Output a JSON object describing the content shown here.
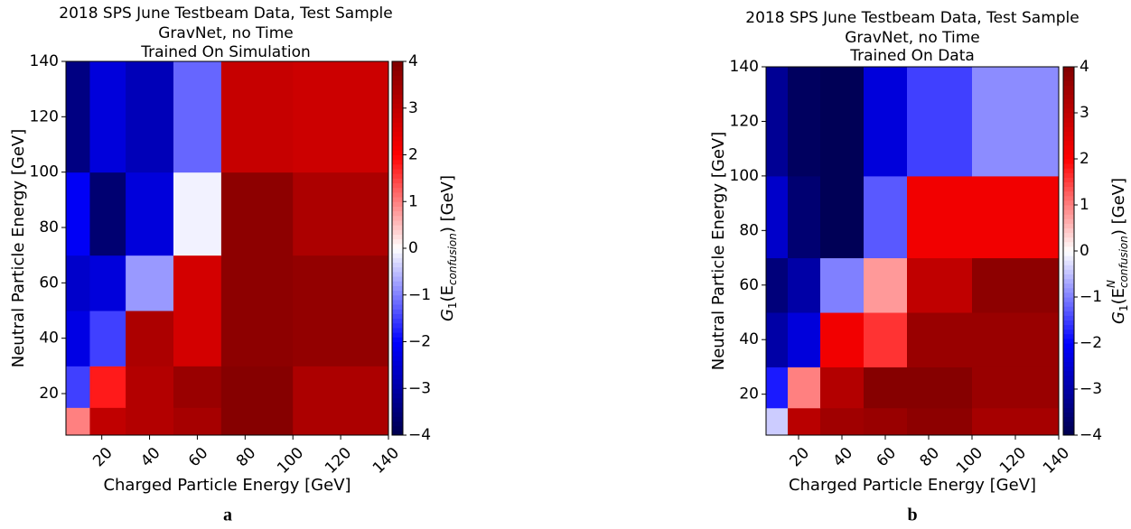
{
  "chart_data": [
    {
      "type": "heatmap",
      "title": [
        "2018 SPS June Testbeam Data, Test Sample",
        "GravNet, no Time",
        "Trained On Simulation"
      ],
      "x_label": "Charged Particle Energy [GeV]",
      "y_label": "Neutral Particle Energy [GeV]",
      "colorbar_label": [
        "G",
        "1",
        "(E",
        "confusion",
        ") [GeV]"
      ],
      "panel_label": "a",
      "x_edges": [
        5,
        15,
        30,
        50,
        70,
        100,
        140
      ],
      "y_edges": [
        5,
        15,
        30,
        50,
        70,
        100,
        140
      ],
      "values": [
        [
          1.0,
          3.0,
          3.2,
          3.4,
          3.9,
          3.3
        ],
        [
          -1.5,
          1.8,
          3.2,
          3.6,
          3.9,
          3.3
        ],
        [
          -2.3,
          -1.5,
          3.3,
          2.7,
          3.8,
          3.7
        ],
        [
          -2.6,
          -2.4,
          -0.8,
          2.7,
          3.8,
          3.7
        ],
        [
          -2.1,
          -3.6,
          -2.4,
          -0.1,
          3.8,
          3.3
        ],
        [
          -3.4,
          -2.4,
          -2.8,
          -1.2,
          2.9,
          2.8
        ]
      ],
      "xlim": [
        5,
        140
      ],
      "ylim": [
        5,
        140
      ],
      "xticks": [
        20,
        40,
        60,
        80,
        100,
        120,
        140
      ],
      "yticks": [
        20,
        40,
        60,
        80,
        100,
        120,
        140
      ],
      "colormap": "seismic",
      "clim": [
        -4,
        4
      ],
      "cticks": [
        {
          "value": -4,
          "label": "−4"
        },
        {
          "value": -3,
          "label": "−3"
        },
        {
          "value": -2,
          "label": "−2"
        },
        {
          "value": -1,
          "label": "−1"
        },
        0,
        1,
        2,
        3,
        4
      ]
    },
    {
      "type": "heatmap",
      "title": [
        "2018 SPS June Testbeam Data, Test Sample",
        "GravNet, no Time",
        "Trained On Data"
      ],
      "x_label": "Charged Particle Energy [GeV]",
      "y_label": "Neutral Particle Energy [GeV]",
      "colorbar_label": [
        "G",
        "1",
        "(E",
        "N",
        "confusion",
        ") [GeV]"
      ],
      "panel_label": "b",
      "x_edges": [
        5,
        15,
        30,
        50,
        70,
        100,
        140
      ],
      "y_edges": [
        5,
        15,
        30,
        50,
        70,
        100,
        140
      ],
      "values": [
        [
          -0.4,
          3.1,
          3.5,
          3.6,
          3.8,
          3.4
        ],
        [
          -1.8,
          1.0,
          3.2,
          3.9,
          3.9,
          3.6
        ],
        [
          -3.0,
          -2.4,
          2.2,
          1.6,
          3.6,
          3.6
        ],
        [
          -3.5,
          -3.0,
          -1.0,
          0.8,
          3.0,
          3.8
        ],
        [
          -2.6,
          -3.6,
          -3.9,
          -1.3,
          2.2,
          2.2
        ],
        [
          -3.2,
          -3.8,
          -3.9,
          -2.4,
          -1.5,
          -0.9
        ]
      ],
      "xlim": [
        5,
        140
      ],
      "ylim": [
        5,
        140
      ],
      "xticks": [
        20,
        40,
        60,
        80,
        100,
        120,
        140
      ],
      "yticks": [
        20,
        40,
        60,
        80,
        100,
        120,
        140
      ],
      "colormap": "seismic",
      "clim": [
        -4,
        4
      ],
      "cticks": [
        {
          "value": -4,
          "label": "−4"
        },
        {
          "value": -3,
          "label": "−3"
        },
        {
          "value": -2,
          "label": "−2"
        },
        {
          "value": -1,
          "label": "−1"
        },
        0,
        1,
        2,
        3,
        4
      ]
    }
  ]
}
